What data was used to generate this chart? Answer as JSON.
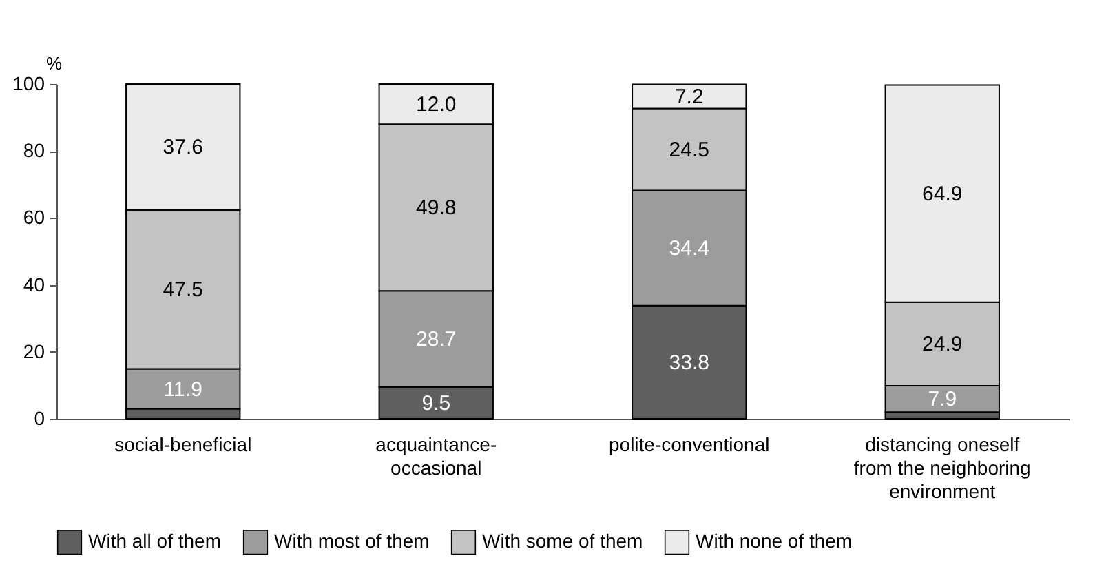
{
  "chart_data": {
    "type": "bar",
    "stacked": true,
    "ylabel": "%",
    "categories": [
      "social-beneficial",
      "acquaintance-occasional",
      "polite-conventional",
      "distancing oneself from the neighboring environment"
    ],
    "series": [
      {
        "name": "With all of them",
        "color": "#5f5f5f",
        "values": [
          3.0,
          9.5,
          33.8,
          2.0
        ],
        "value_labels": [
          null,
          "9.5",
          "33.8",
          null
        ]
      },
      {
        "name": "With most of them",
        "color": "#9c9c9c",
        "values": [
          11.9,
          28.7,
          34.4,
          7.9
        ],
        "value_labels": [
          "11.9",
          "28.7",
          "34.4",
          "7.9"
        ]
      },
      {
        "name": "With some of them",
        "color": "#c3c3c3",
        "values": [
          47.5,
          49.8,
          24.5,
          24.9
        ],
        "value_labels": [
          "47.5",
          "49.8",
          "24.5",
          "24.9"
        ]
      },
      {
        "name": "With none of them",
        "color": "#ebebeb",
        "values": [
          37.6,
          12.0,
          7.2,
          64.9
        ],
        "value_labels": [
          "37.6",
          "12.0",
          "7.2",
          "64.9"
        ]
      }
    ],
    "ylim": [
      0,
      100
    ],
    "yticks": [
      0,
      20,
      40,
      60,
      80,
      100
    ],
    "grid": false,
    "legend": "bottom"
  }
}
